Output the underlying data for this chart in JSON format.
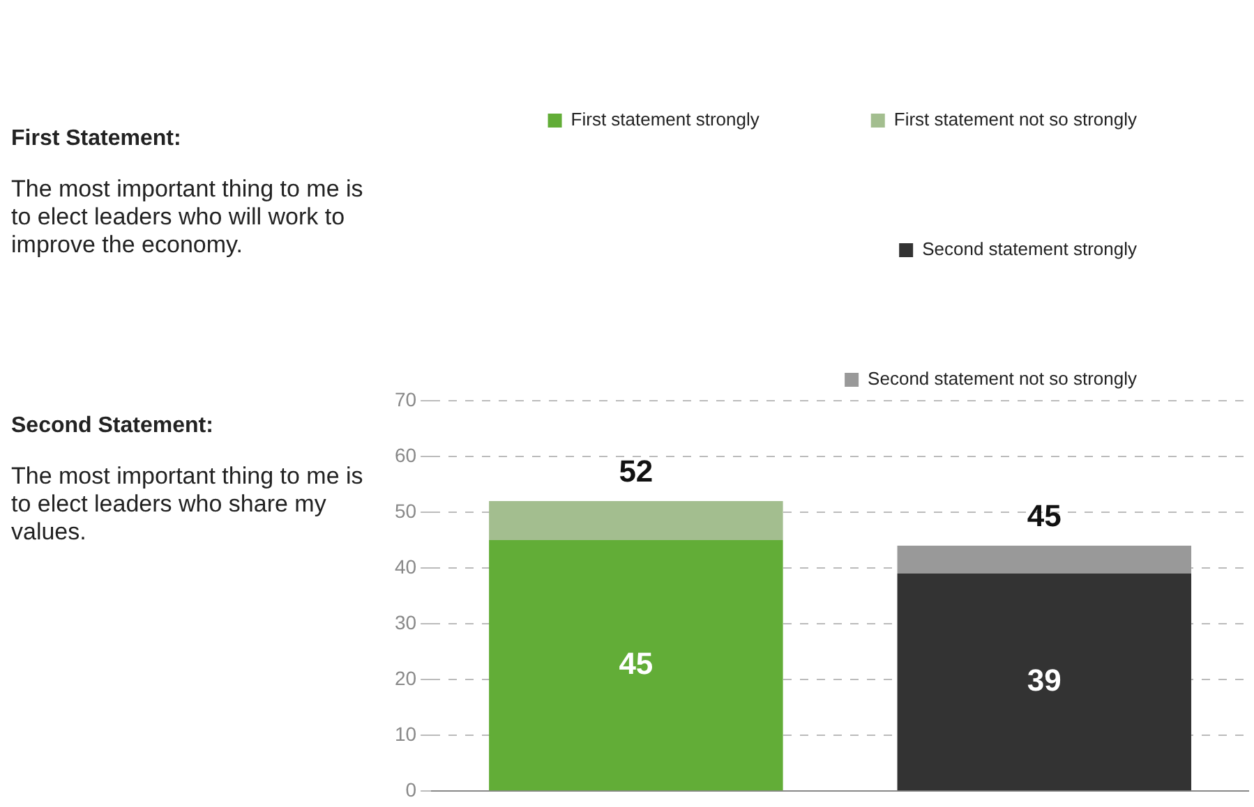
{
  "chart_data": {
    "type": "bar",
    "stacked": true,
    "categories": [
      null,
      null
    ],
    "series": [
      {
        "name": "First statement strongly",
        "color": "#62ad37",
        "values": [
          45,
          null
        ],
        "value_labels": [
          "45",
          null
        ]
      },
      {
        "name": "First statement not so strongly",
        "color": "#a3be8f",
        "values": [
          7,
          null
        ]
      },
      {
        "name": "Second statement strongly",
        "color": "#333333",
        "values": [
          null,
          39
        ],
        "value_labels": [
          null,
          "39"
        ]
      },
      {
        "name": "Second statement not so strongly",
        "color": "#999999",
        "values": [
          null,
          5
        ]
      }
    ],
    "totals": [
      "52",
      "45"
    ],
    "ylim": [
      0,
      70
    ],
    "yticks": [
      0,
      10,
      20,
      30,
      40,
      50,
      60,
      70
    ],
    "grid": "y",
    "tick_labels": "y",
    "legend": "top",
    "annotations": [
      "First Statement:",
      "The most important thing to me is to elect leaders who will work to improve the economy.",
      "Second Statement:",
      "The most important thing to me is to elect leaders who share my values."
    ]
  }
}
